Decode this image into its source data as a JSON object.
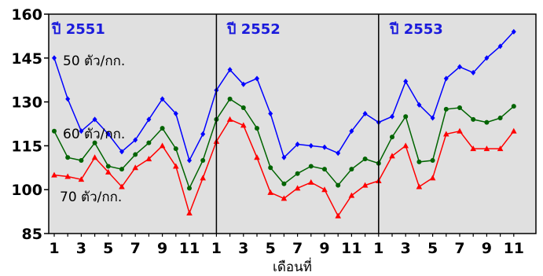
{
  "chart_data": {
    "type": "line",
    "xlabel": "เดือนที่",
    "ylabel": "",
    "ylim": [
      85,
      160
    ],
    "yticks": [
      85,
      100,
      115,
      130,
      145,
      160
    ],
    "grid": false,
    "legend": "none",
    "x_tick_labels": [
      "1",
      "",
      "3",
      "",
      "5",
      "",
      "7",
      "",
      "9",
      "",
      "11",
      "",
      "1",
      "",
      "3",
      "",
      "5",
      "",
      "7",
      "",
      "9",
      "",
      "11",
      "",
      "1",
      "",
      "3",
      "",
      "5",
      "",
      "7",
      "",
      "9",
      "",
      "11"
    ],
    "year_labels": [
      "ปี 2551",
      "ปี 2552",
      "ปี 2553"
    ],
    "series_labels": [
      "50 ตัว/กก.",
      "60 ตัว/กก.",
      "70 ตัว/กก."
    ],
    "series": [
      {
        "name": "50 ตัว/กก.",
        "color": "#0000ff",
        "marker": "diamond",
        "values": [
          145,
          131,
          120,
          124,
          119,
          113,
          117,
          124,
          131,
          126,
          110,
          119,
          134,
          141,
          136,
          138,
          126,
          111,
          115.5,
          115,
          114.5,
          112.5,
          120,
          126,
          123,
          125,
          137,
          129,
          124.5,
          138,
          142,
          140,
          145,
          149,
          154
        ]
      },
      {
        "name": "60 ตัว/กก.",
        "color": "#006400",
        "marker": "circle",
        "values": [
          120,
          111,
          110,
          116,
          108,
          107,
          112,
          116,
          121,
          114,
          100.5,
          110,
          124,
          131,
          128,
          121,
          107.5,
          102,
          105.5,
          108,
          107,
          101.5,
          107,
          110.5,
          109,
          118,
          125,
          109.5,
          110,
          127.5,
          128,
          124,
          123,
          124.5,
          128.5
        ]
      },
      {
        "name": "70 ตัว/กก.",
        "color": "#ff0000",
        "marker": "triangle",
        "values": [
          105,
          104.5,
          103.5,
          111,
          106,
          101,
          107.5,
          110.5,
          115,
          108,
          92,
          104,
          116.5,
          124,
          122,
          111,
          99,
          97,
          100.5,
          102.5,
          100,
          91,
          98,
          101.5,
          103,
          111.5,
          115,
          101,
          104,
          119,
          120,
          114,
          114,
          114,
          120
        ]
      }
    ]
  }
}
